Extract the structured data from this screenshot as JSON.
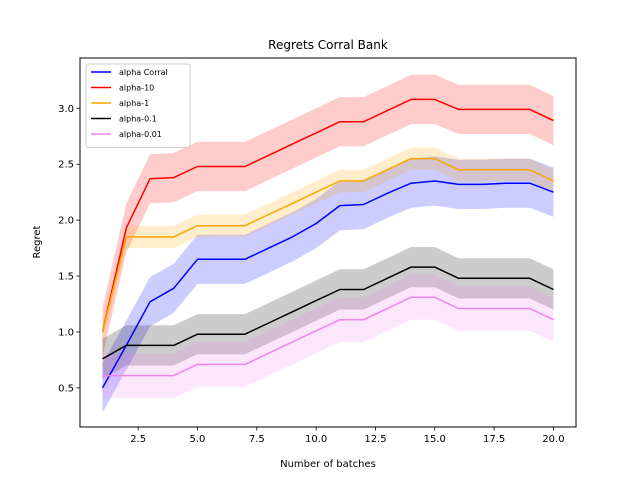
{
  "chart_data": {
    "type": "line",
    "title": "Regrets Corral Bank",
    "xlabel": "Number of batches",
    "ylabel": "Regret",
    "xlim": [
      0.05,
      20.95
    ],
    "ylim": [
      0.15,
      3.45
    ],
    "xticks": [
      2.5,
      5.0,
      7.5,
      10.0,
      12.5,
      15.0,
      17.5,
      20.0
    ],
    "xtick_labels": [
      "2.5",
      "5.0",
      "7.5",
      "10.0",
      "12.5",
      "15.0",
      "17.5",
      "20.0"
    ],
    "yticks": [
      0.5,
      1.0,
      1.5,
      2.0,
      2.5,
      3.0
    ],
    "ytick_labels": [
      "0.5",
      "1.0",
      "1.5",
      "2.0",
      "2.5",
      "3.0"
    ],
    "grid": false,
    "legend_position": "top-left",
    "x": [
      1,
      2,
      3,
      4,
      5,
      6,
      7,
      8,
      9,
      10,
      11,
      12,
      13,
      14,
      15,
      16,
      17,
      18,
      19,
      20
    ],
    "series": [
      {
        "name": "alpha Corral",
        "color": "#0000ff",
        "values": [
          0.5,
          0.88,
          1.27,
          1.39,
          1.65,
          1.65,
          1.65,
          1.75,
          1.85,
          1.97,
          2.13,
          2.14,
          2.24,
          2.33,
          2.35,
          2.32,
          2.32,
          2.33,
          2.33,
          2.25
        ],
        "band_halfwidth": 0.22
      },
      {
        "name": "alpha-10",
        "color": "#ff0000",
        "values": [
          1.0,
          1.93,
          2.37,
          2.38,
          2.48,
          2.48,
          2.48,
          2.58,
          2.68,
          2.78,
          2.88,
          2.88,
          2.98,
          3.08,
          3.08,
          2.99,
          2.99,
          2.99,
          2.99,
          2.89
        ],
        "band_halfwidth": 0.22
      },
      {
        "name": "alpha-1",
        "color": "#ffa500",
        "values": [
          1.0,
          1.85,
          1.85,
          1.85,
          1.95,
          1.95,
          1.95,
          2.05,
          2.15,
          2.25,
          2.35,
          2.35,
          2.45,
          2.55,
          2.55,
          2.45,
          2.45,
          2.45,
          2.45,
          2.35
        ],
        "band_halfwidth": 0.1
      },
      {
        "name": "alpha-0.1",
        "color": "#000000",
        "values": [
          0.76,
          0.88,
          0.88,
          0.88,
          0.98,
          0.98,
          0.98,
          1.08,
          1.18,
          1.28,
          1.38,
          1.38,
          1.48,
          1.58,
          1.58,
          1.48,
          1.48,
          1.48,
          1.48,
          1.38
        ],
        "band_halfwidth": 0.18
      },
      {
        "name": "alpha-0.01",
        "color": "#ee82ee",
        "values": [
          0.61,
          0.61,
          0.61,
          0.61,
          0.71,
          0.71,
          0.71,
          0.81,
          0.91,
          1.01,
          1.11,
          1.11,
          1.21,
          1.31,
          1.31,
          1.21,
          1.21,
          1.21,
          1.21,
          1.11
        ],
        "band_halfwidth": 0.2
      }
    ]
  }
}
